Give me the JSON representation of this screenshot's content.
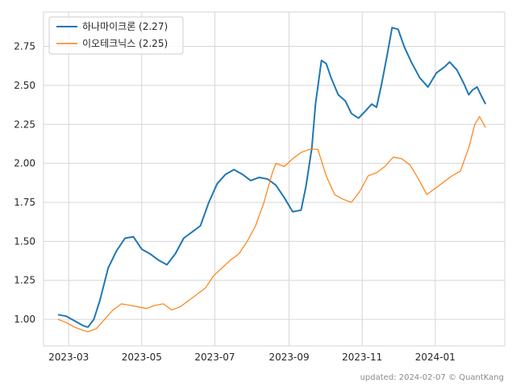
{
  "chart_data": {
    "type": "line",
    "x_range": [
      "2023-02-08",
      "2024-02-28"
    ],
    "ylim": [
      0.83,
      2.97
    ],
    "grid": true,
    "legend_position": "top-left",
    "x_ticks": [
      {
        "date": "2023-03-01",
        "label": "2023-03"
      },
      {
        "date": "2023-05-01",
        "label": "2023-05"
      },
      {
        "date": "2023-07-01",
        "label": "2023-07"
      },
      {
        "date": "2023-09-01",
        "label": "2023-09"
      },
      {
        "date": "2023-11-01",
        "label": "2023-11"
      },
      {
        "date": "2024-01-01",
        "label": "2024-01"
      }
    ],
    "y_ticks": [
      {
        "value": 1.0,
        "label": "1.00"
      },
      {
        "value": 1.25,
        "label": "1.25"
      },
      {
        "value": 1.5,
        "label": "1.50"
      },
      {
        "value": 1.75,
        "label": "1.75"
      },
      {
        "value": 2.0,
        "label": "2.00"
      },
      {
        "value": 2.25,
        "label": "2.25"
      },
      {
        "value": 2.5,
        "label": "2.50"
      },
      {
        "value": 2.75,
        "label": "2.75"
      }
    ],
    "series": [
      {
        "name": "하나마이크론 (2.27)",
        "color": "#1f77b4",
        "points": [
          [
            "2023-02-20",
            1.03
          ],
          [
            "2023-02-27",
            1.02
          ],
          [
            "2023-03-06",
            0.99
          ],
          [
            "2023-03-13",
            0.96
          ],
          [
            "2023-03-17",
            0.95
          ],
          [
            "2023-03-22",
            1.0
          ],
          [
            "2023-03-27",
            1.12
          ],
          [
            "2023-04-03",
            1.33
          ],
          [
            "2023-04-10",
            1.44
          ],
          [
            "2023-04-17",
            1.52
          ],
          [
            "2023-04-24",
            1.53
          ],
          [
            "2023-05-01",
            1.45
          ],
          [
            "2023-05-08",
            1.42
          ],
          [
            "2023-05-15",
            1.38
          ],
          [
            "2023-05-22",
            1.35
          ],
          [
            "2023-05-29",
            1.42
          ],
          [
            "2023-06-05",
            1.52
          ],
          [
            "2023-06-12",
            1.56
          ],
          [
            "2023-06-19",
            1.6
          ],
          [
            "2023-06-26",
            1.75
          ],
          [
            "2023-07-03",
            1.87
          ],
          [
            "2023-07-10",
            1.93
          ],
          [
            "2023-07-17",
            1.96
          ],
          [
            "2023-07-24",
            1.93
          ],
          [
            "2023-07-31",
            1.89
          ],
          [
            "2023-08-07",
            1.91
          ],
          [
            "2023-08-14",
            1.9
          ],
          [
            "2023-08-21",
            1.86
          ],
          [
            "2023-08-28",
            1.78
          ],
          [
            "2023-09-04",
            1.69
          ],
          [
            "2023-09-11",
            1.7
          ],
          [
            "2023-09-15",
            1.85
          ],
          [
            "2023-09-20",
            2.1
          ],
          [
            "2023-09-23",
            2.38
          ],
          [
            "2023-09-28",
            2.66
          ],
          [
            "2023-10-02",
            2.64
          ],
          [
            "2023-10-06",
            2.55
          ],
          [
            "2023-10-12",
            2.44
          ],
          [
            "2023-10-18",
            2.4
          ],
          [
            "2023-10-23",
            2.32
          ],
          [
            "2023-10-29",
            2.29
          ],
          [
            "2023-11-03",
            2.33
          ],
          [
            "2023-11-09",
            2.38
          ],
          [
            "2023-11-13",
            2.36
          ],
          [
            "2023-11-17",
            2.5
          ],
          [
            "2023-11-22",
            2.7
          ],
          [
            "2023-11-26",
            2.87
          ],
          [
            "2023-12-01",
            2.86
          ],
          [
            "2023-12-06",
            2.75
          ],
          [
            "2023-12-12",
            2.65
          ],
          [
            "2023-12-19",
            2.55
          ],
          [
            "2023-12-26",
            2.49
          ],
          [
            "2024-01-02",
            2.58
          ],
          [
            "2024-01-09",
            2.62
          ],
          [
            "2024-01-13",
            2.65
          ],
          [
            "2024-01-19",
            2.6
          ],
          [
            "2024-01-25",
            2.51
          ],
          [
            "2024-01-29",
            2.44
          ],
          [
            "2024-02-01",
            2.47
          ],
          [
            "2024-02-05",
            2.49
          ],
          [
            "2024-02-08",
            2.44
          ],
          [
            "2024-02-12",
            2.38
          ]
        ]
      },
      {
        "name": "이오테크닉스 (2.25)",
        "color": "#ff7f0e",
        "points": [
          [
            "2023-02-20",
            1.0
          ],
          [
            "2023-02-27",
            0.98
          ],
          [
            "2023-03-06",
            0.95
          ],
          [
            "2023-03-13",
            0.93
          ],
          [
            "2023-03-17",
            0.92
          ],
          [
            "2023-03-24",
            0.94
          ],
          [
            "2023-03-31",
            1.0
          ],
          [
            "2023-04-07",
            1.06
          ],
          [
            "2023-04-14",
            1.1
          ],
          [
            "2023-04-21",
            1.09
          ],
          [
            "2023-04-28",
            1.08
          ],
          [
            "2023-05-05",
            1.07
          ],
          [
            "2023-05-12",
            1.09
          ],
          [
            "2023-05-19",
            1.1
          ],
          [
            "2023-05-26",
            1.06
          ],
          [
            "2023-06-02",
            1.08
          ],
          [
            "2023-06-09",
            1.12
          ],
          [
            "2023-06-16",
            1.16
          ],
          [
            "2023-06-23",
            1.2
          ],
          [
            "2023-06-30",
            1.28
          ],
          [
            "2023-07-07",
            1.33
          ],
          [
            "2023-07-14",
            1.38
          ],
          [
            "2023-07-21",
            1.42
          ],
          [
            "2023-07-28",
            1.5
          ],
          [
            "2023-08-04",
            1.6
          ],
          [
            "2023-08-11",
            1.75
          ],
          [
            "2023-08-18",
            1.94
          ],
          [
            "2023-08-21",
            2.0
          ],
          [
            "2023-08-28",
            1.98
          ],
          [
            "2023-09-04",
            2.03
          ],
          [
            "2023-09-11",
            2.07
          ],
          [
            "2023-09-18",
            2.09
          ],
          [
            "2023-09-25",
            2.09
          ],
          [
            "2023-10-02",
            1.92
          ],
          [
            "2023-10-09",
            1.8
          ],
          [
            "2023-10-16",
            1.77
          ],
          [
            "2023-10-23",
            1.75
          ],
          [
            "2023-10-30",
            1.82
          ],
          [
            "2023-11-06",
            1.92
          ],
          [
            "2023-11-13",
            1.94
          ],
          [
            "2023-11-20",
            1.98
          ],
          [
            "2023-11-27",
            2.04
          ],
          [
            "2023-12-04",
            2.03
          ],
          [
            "2023-12-11",
            1.99
          ],
          [
            "2023-12-18",
            1.9
          ],
          [
            "2023-12-25",
            1.8
          ],
          [
            "2024-01-01",
            1.84
          ],
          [
            "2024-01-08",
            1.88
          ],
          [
            "2024-01-15",
            1.92
          ],
          [
            "2024-01-22",
            1.95
          ],
          [
            "2024-01-29",
            2.1
          ],
          [
            "2024-02-03",
            2.25
          ],
          [
            "2024-02-07",
            2.3
          ],
          [
            "2024-02-12",
            2.23
          ]
        ]
      }
    ]
  },
  "credit": "updated: 2024-02-07 © QuantKang"
}
